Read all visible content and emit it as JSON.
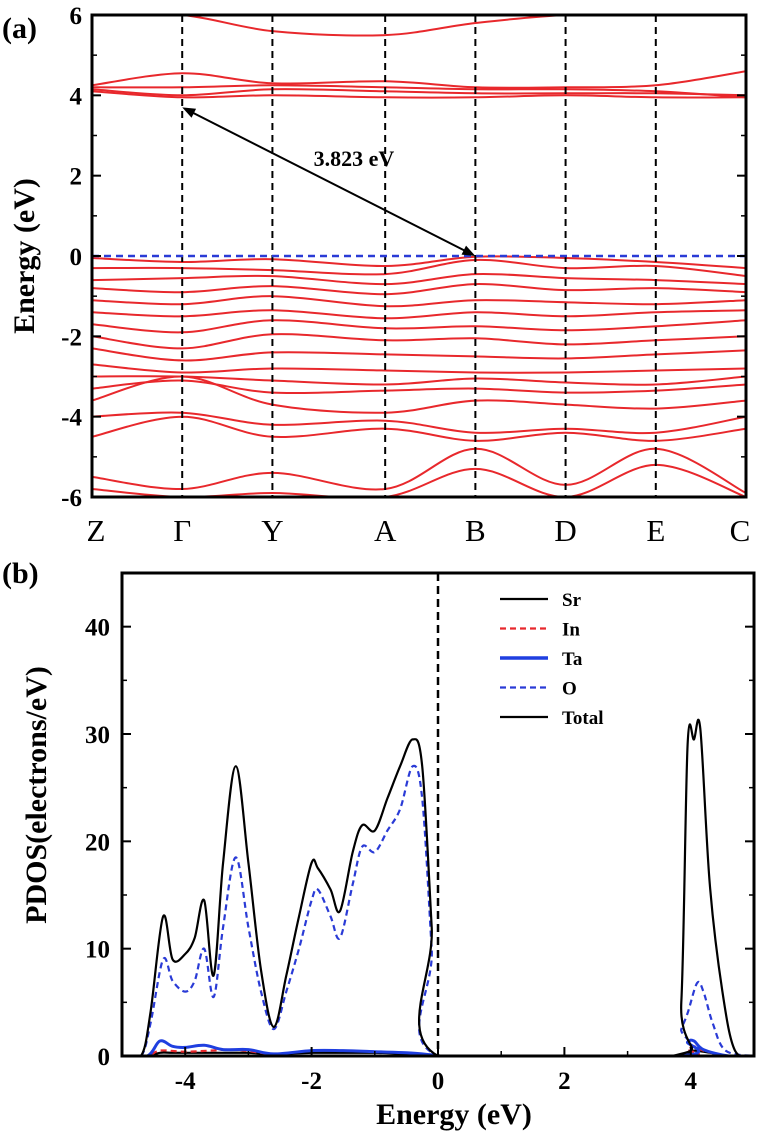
{
  "colors": {
    "band": "#e8282c",
    "fermi_line": "#2a3bd6",
    "k_divider": "#000000",
    "sr": "#000000",
    "in": "#e8282c",
    "ta": "#1f3fe0",
    "o": "#2a3bd6",
    "total": "#000000"
  },
  "chart_data": [
    {
      "type": "line",
      "panel_label": "(a)",
      "title": "",
      "ylabel": "Energy (eV)",
      "xlabel": "",
      "ylim": [
        -6,
        6
      ],
      "yticks": [
        -6,
        -4,
        -2,
        0,
        2,
        4,
        6
      ],
      "kpoints": [
        "Z",
        "Γ",
        "Y",
        "A",
        "B",
        "D",
        "E",
        "C"
      ],
      "kpoint_positions": [
        0,
        1,
        2,
        3.25,
        4.25,
        5.25,
        6.25,
        7.25
      ],
      "fermi_level": 0,
      "annotation": {
        "text": "3.823 eV",
        "from": {
          "k": 1,
          "energy": 3.7
        },
        "to": {
          "k": 4.25,
          "energy": 0
        }
      },
      "conduction_bands": [
        [
          6.0,
          6.0,
          5.6,
          5.5,
          5.8,
          6.0,
          6.0,
          6.0
        ],
        [
          4.25,
          4.55,
          4.3,
          4.35,
          4.2,
          4.2,
          4.25,
          4.6
        ],
        [
          4.15,
          4.0,
          4.15,
          4.1,
          4.05,
          4.05,
          4.05,
          4.0
        ],
        [
          4.1,
          3.95,
          4.0,
          3.95,
          3.95,
          4.0,
          3.95,
          3.95
        ],
        [
          4.2,
          4.2,
          4.25,
          4.2,
          4.15,
          4.15,
          4.1,
          3.95
        ]
      ],
      "valence_bands": [
        [
          -0.05,
          -0.15,
          -0.08,
          -0.25,
          -0.02,
          -0.05,
          -0.15,
          -0.3
        ],
        [
          -0.3,
          -0.3,
          -0.35,
          -0.45,
          -0.1,
          -0.3,
          -0.25,
          -0.5
        ],
        [
          -0.6,
          -0.55,
          -0.5,
          -0.7,
          -0.45,
          -0.55,
          -0.6,
          -0.7
        ],
        [
          -0.8,
          -0.9,
          -0.75,
          -0.95,
          -0.7,
          -0.85,
          -0.8,
          -0.9
        ],
        [
          -1.1,
          -1.2,
          -1.0,
          -1.25,
          -1.1,
          -1.15,
          -1.2,
          -1.1
        ],
        [
          -1.4,
          -1.5,
          -1.35,
          -1.55,
          -1.4,
          -1.5,
          -1.4,
          -1.35
        ],
        [
          -1.7,
          -1.9,
          -1.6,
          -1.8,
          -1.75,
          -1.85,
          -1.75,
          -1.6
        ],
        [
          -2.0,
          -2.3,
          -1.95,
          -2.1,
          -2.05,
          -2.2,
          -2.1,
          -2.0
        ],
        [
          -2.3,
          -2.6,
          -2.4,
          -2.45,
          -2.5,
          -2.55,
          -2.45,
          -2.35
        ],
        [
          -2.7,
          -2.9,
          -2.8,
          -2.85,
          -2.9,
          -2.9,
          -2.85,
          -2.8
        ],
        [
          -3.0,
          -3.0,
          -3.1,
          -3.2,
          -3.05,
          -3.15,
          -3.2,
          -3.0
        ],
        [
          -3.3,
          -3.1,
          -3.4,
          -3.35,
          -3.3,
          -3.4,
          -3.35,
          -3.2
        ],
        [
          -3.6,
          -3.0,
          -3.7,
          -3.9,
          -3.6,
          -3.7,
          -3.8,
          -3.6
        ],
        [
          -4.0,
          -3.9,
          -4.2,
          -4.1,
          -4.4,
          -4.3,
          -4.4,
          -4.0
        ],
        [
          -4.5,
          -4.0,
          -4.5,
          -4.3,
          -4.6,
          -4.4,
          -4.6,
          -4.3
        ],
        [
          -5.5,
          -5.8,
          -5.4,
          -5.8,
          -4.8,
          -5.7,
          -4.8,
          -5.9
        ],
        [
          -5.8,
          -6.0,
          -5.9,
          -6.0,
          -5.3,
          -6.0,
          -5.2,
          -6.0
        ]
      ]
    },
    {
      "type": "line",
      "panel_label": "(b)",
      "title": "",
      "xlabel": "Energy (eV)",
      "ylabel": "PDOS(electrons/eV)",
      "xlim": [
        -5,
        5
      ],
      "ylim": [
        0,
        45
      ],
      "xticks": [
        -4,
        -2,
        0,
        2,
        4
      ],
      "yticks": [
        0,
        10,
        20,
        30,
        40
      ],
      "fermi_level": 0,
      "legend_position": "top-right",
      "series": [
        {
          "name": "Sr",
          "color_key": "sr",
          "dash": "solid",
          "x": [
            -5.0,
            -4.6,
            -4.4,
            -4.2,
            -3.8,
            -3.3,
            -3.0,
            -2.6,
            -2.0,
            -1.5,
            -1.0,
            -0.5,
            -0.1,
            0.0,
            3.8,
            3.95,
            4.05,
            4.2,
            4.4,
            4.6,
            5.0
          ],
          "y": [
            0.0,
            0.0,
            0.3,
            0.3,
            0.3,
            0.3,
            0.3,
            0.2,
            0.3,
            0.3,
            0.3,
            0.2,
            0.1,
            0.0,
            0.0,
            0.3,
            0.5,
            0.4,
            0.2,
            0.0,
            0.0
          ]
        },
        {
          "name": "In",
          "color_key": "in",
          "dash": "dashed",
          "x": [
            -5.0,
            -4.6,
            -4.4,
            -4.0,
            -3.6,
            -3.2,
            -2.6,
            -2.0,
            -1.5,
            -1.0,
            -0.5,
            -0.1,
            0.0,
            3.8,
            3.95,
            4.05,
            4.2,
            4.6,
            5.0
          ],
          "y": [
            0.0,
            0.0,
            0.5,
            0.4,
            0.5,
            0.6,
            0.2,
            0.5,
            0.5,
            0.4,
            0.3,
            0.1,
            0.0,
            0.0,
            0.6,
            0.9,
            0.5,
            0.0,
            0.0
          ]
        },
        {
          "name": "Ta",
          "color_key": "ta",
          "dash": "solid",
          "x": [
            -5.0,
            -4.6,
            -4.4,
            -4.2,
            -4.0,
            -3.7,
            -3.4,
            -3.0,
            -2.6,
            -2.0,
            -1.5,
            -1.0,
            -0.5,
            -0.1,
            0.0,
            3.8,
            3.95,
            4.05,
            4.2,
            4.6,
            5.0
          ],
          "y": [
            0.0,
            0.0,
            1.4,
            0.9,
            0.8,
            1.0,
            0.6,
            0.6,
            0.2,
            0.5,
            0.5,
            0.4,
            0.3,
            0.1,
            0.0,
            0.0,
            1.3,
            1.4,
            0.6,
            0.0,
            0.0
          ]
        },
        {
          "name": "O",
          "color_key": "o",
          "dash": "dashed",
          "x": [
            -5.0,
            -4.7,
            -4.55,
            -4.35,
            -4.2,
            -4.0,
            -3.85,
            -3.7,
            -3.55,
            -3.4,
            -3.2,
            -3.0,
            -2.8,
            -2.6,
            -2.4,
            -2.2,
            -2.0,
            -1.9,
            -1.7,
            -1.55,
            -1.35,
            -1.2,
            -1.0,
            -0.8,
            -0.6,
            -0.4,
            -0.25,
            -0.1,
            0.0,
            3.7,
            3.85,
            3.95,
            4.1,
            4.2,
            4.35,
            4.55,
            5.0
          ],
          "y": [
            0.0,
            0.0,
            3.0,
            9.0,
            7.0,
            6.0,
            7.0,
            10.0,
            5.5,
            12.0,
            18.5,
            12.0,
            6.0,
            2.5,
            6.0,
            10.0,
            14.5,
            15.5,
            13.0,
            11.0,
            16.0,
            19.5,
            19.0,
            21.0,
            23.0,
            27.0,
            24.0,
            10.0,
            0.0,
            0.0,
            2.5,
            4.0,
            6.8,
            6.0,
            3.0,
            0.5,
            0.0
          ]
        },
        {
          "name": "Total",
          "color_key": "total",
          "dash": "solid",
          "x": [
            -5.0,
            -4.7,
            -4.55,
            -4.35,
            -4.2,
            -4.0,
            -3.85,
            -3.7,
            -3.55,
            -3.4,
            -3.2,
            -3.0,
            -2.8,
            -2.6,
            -2.4,
            -2.2,
            -2.0,
            -1.9,
            -1.7,
            -1.55,
            -1.35,
            -1.2,
            -1.0,
            -0.8,
            -0.6,
            -0.4,
            -0.25,
            -0.1,
            0.0,
            3.7,
            3.85,
            3.95,
            4.05,
            4.15,
            4.3,
            4.5,
            4.7,
            5.0
          ],
          "y": [
            0.0,
            0.0,
            4.0,
            13.0,
            9.0,
            9.5,
            11.0,
            14.5,
            7.5,
            18.0,
            27.0,
            18.0,
            8.0,
            2.7,
            7.5,
            13.0,
            18.0,
            17.5,
            15.5,
            13.5,
            19.0,
            21.5,
            21.0,
            24.0,
            27.0,
            29.5,
            27.0,
            12.0,
            0.0,
            0.0,
            5.0,
            29.0,
            29.5,
            30.5,
            16.0,
            6.0,
            0.5,
            0.0
          ]
        }
      ]
    }
  ]
}
